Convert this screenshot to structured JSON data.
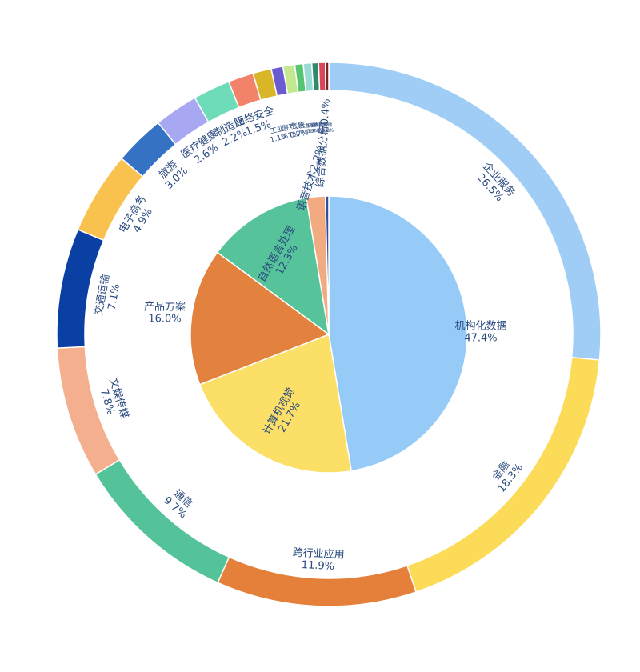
{
  "chart_data": [
    {
      "type": "pie",
      "ring": "inner",
      "categories": [
        "机构化数据",
        "计算机视觉",
        "产品方案",
        "自然语言处理",
        "语音技术",
        "综合数据分析"
      ],
      "values": [
        47.4,
        21.7,
        16.0,
        12.3,
        2.2,
        0.4
      ],
      "value_labels": [
        "47.4%",
        "21.7%",
        "16.0%",
        "12.3%",
        "2.2%",
        "0.4%"
      ],
      "colors": [
        "#96cbf7",
        "#fcdf66",
        "#e3823e",
        "#56c39a",
        "#f2aa80",
        "#2c4fa3"
      ]
    },
    {
      "type": "pie",
      "ring": "outer",
      "categories": [
        "企业服务",
        "金融",
        "跨行业应用",
        "通信",
        "文娱传媒",
        "交通运输",
        "电子商务",
        "旅游",
        "医疗健康",
        "制造业",
        "网络安全",
        "工业",
        "游戏",
        "气象",
        "人工智能",
        "IT服务",
        "教育",
        "能源",
        "其他"
      ],
      "values": [
        26.5,
        18.3,
        11.9,
        9.7,
        7.8,
        7.1,
        4.9,
        3.0,
        2.6,
        2.2,
        1.5,
        1.1,
        0.7,
        0.7,
        0.5,
        0.5,
        0.4,
        0.4,
        0.2
      ],
      "value_labels": [
        "26.5%",
        "18.3%",
        "11.9%",
        "9.7%",
        "7.8%",
        "7.1%",
        "4.9%",
        "3.0%",
        "2.6%",
        "2.2%",
        "1.5%",
        "1.1%",
        "0.7%",
        "0.7%",
        "0.5%",
        "0.5%",
        "0.4%",
        "0.4%",
        "0.2%"
      ],
      "colors": [
        "#9fcdf6",
        "#fcdb58",
        "#e5803b",
        "#54c39a",
        "#f4b08e",
        "#0a40a4",
        "#f9c24e",
        "#3572c4",
        "#a8a8f2",
        "#6edcb9",
        "#f2826a",
        "#d9b627",
        "#6a5bd0",
        "#c3e890",
        "#56c470",
        "#9cdbd3",
        "#2f8a6c",
        "#d9465a",
        "#7a2525"
      ]
    }
  ]
}
